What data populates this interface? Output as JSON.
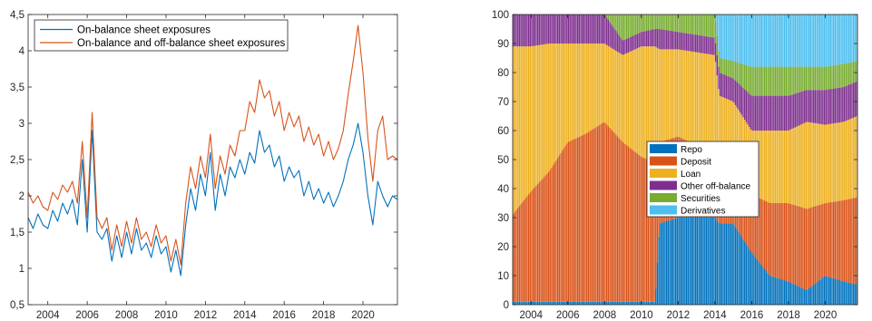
{
  "chart_data": [
    {
      "type": "line",
      "xlim": [
        2003.0,
        2021.75
      ],
      "ylim": [
        0.5,
        4.5
      ],
      "x_ticks": [
        "2004",
        "2006",
        "2008",
        "2010",
        "2012",
        "2014",
        "2016",
        "2018",
        "2020"
      ],
      "y_ticks": [
        "0,5",
        "1",
        "1,5",
        "2",
        "2,5",
        "3",
        "3,5",
        "4",
        "4,5"
      ],
      "grid": false,
      "legend_position": "top-left",
      "series": [
        {
          "name": "On-balance sheet exposures",
          "color": "#0072BD",
          "points": [
            [
              2003.0,
              1.7
            ],
            [
              2003.25,
              1.55
            ],
            [
              2003.5,
              1.75
            ],
            [
              2003.75,
              1.6
            ],
            [
              2004.0,
              1.55
            ],
            [
              2004.25,
              1.8
            ],
            [
              2004.5,
              1.65
            ],
            [
              2004.75,
              1.9
            ],
            [
              2005.0,
              1.75
            ],
            [
              2005.25,
              1.95
            ],
            [
              2005.5,
              1.6
            ],
            [
              2005.75,
              2.5
            ],
            [
              2006.0,
              1.5
            ],
            [
              2006.25,
              2.9
            ],
            [
              2006.5,
              1.5
            ],
            [
              2006.75,
              1.4
            ],
            [
              2007.0,
              1.55
            ],
            [
              2007.25,
              1.1
            ],
            [
              2007.5,
              1.45
            ],
            [
              2007.75,
              1.15
            ],
            [
              2008.0,
              1.5
            ],
            [
              2008.25,
              1.2
            ],
            [
              2008.5,
              1.55
            ],
            [
              2008.75,
              1.25
            ],
            [
              2009.0,
              1.35
            ],
            [
              2009.25,
              1.15
            ],
            [
              2009.5,
              1.45
            ],
            [
              2009.75,
              1.2
            ],
            [
              2010.0,
              1.3
            ],
            [
              2010.25,
              0.95
            ],
            [
              2010.5,
              1.25
            ],
            [
              2010.75,
              0.9
            ],
            [
              2011.0,
              1.6
            ],
            [
              2011.25,
              2.1
            ],
            [
              2011.5,
              1.8
            ],
            [
              2011.75,
              2.3
            ],
            [
              2012.0,
              2.0
            ],
            [
              2012.25,
              2.6
            ],
            [
              2012.5,
              1.8
            ],
            [
              2012.75,
              2.3
            ],
            [
              2013.0,
              2.0
            ],
            [
              2013.25,
              2.4
            ],
            [
              2013.5,
              2.25
            ],
            [
              2013.75,
              2.5
            ],
            [
              2014.0,
              2.3
            ],
            [
              2014.25,
              2.6
            ],
            [
              2014.5,
              2.45
            ],
            [
              2014.75,
              2.9
            ],
            [
              2015.0,
              2.6
            ],
            [
              2015.25,
              2.7
            ],
            [
              2015.5,
              2.4
            ],
            [
              2015.75,
              2.55
            ],
            [
              2016.0,
              2.2
            ],
            [
              2016.25,
              2.4
            ],
            [
              2016.5,
              2.25
            ],
            [
              2016.75,
              2.35
            ],
            [
              2017.0,
              2.0
            ],
            [
              2017.25,
              2.2
            ],
            [
              2017.5,
              1.95
            ],
            [
              2017.75,
              2.1
            ],
            [
              2018.0,
              1.9
            ],
            [
              2018.25,
              2.05
            ],
            [
              2018.5,
              1.85
            ],
            [
              2018.75,
              2.0
            ],
            [
              2019.0,
              2.2
            ],
            [
              2019.25,
              2.5
            ],
            [
              2019.5,
              2.7
            ],
            [
              2019.75,
              3.0
            ],
            [
              2020.0,
              2.6
            ],
            [
              2020.25,
              2.0
            ],
            [
              2020.5,
              1.6
            ],
            [
              2020.75,
              2.2
            ],
            [
              2021.0,
              2.0
            ],
            [
              2021.25,
              1.85
            ],
            [
              2021.5,
              2.0
            ],
            [
              2021.75,
              1.95
            ]
          ]
        },
        {
          "name": "On-balance and off-balance sheet exposures",
          "color": "#D95319",
          "points": [
            [
              2003.0,
              2.05
            ],
            [
              2003.25,
              1.9
            ],
            [
              2003.5,
              2.0
            ],
            [
              2003.75,
              1.85
            ],
            [
              2004.0,
              1.8
            ],
            [
              2004.25,
              2.05
            ],
            [
              2004.5,
              1.95
            ],
            [
              2004.75,
              2.15
            ],
            [
              2005.0,
              2.05
            ],
            [
              2005.25,
              2.2
            ],
            [
              2005.5,
              1.9
            ],
            [
              2005.75,
              2.75
            ],
            [
              2006.0,
              1.7
            ],
            [
              2006.25,
              3.15
            ],
            [
              2006.5,
              1.7
            ],
            [
              2006.75,
              1.55
            ],
            [
              2007.0,
              1.7
            ],
            [
              2007.25,
              1.25
            ],
            [
              2007.5,
              1.6
            ],
            [
              2007.75,
              1.3
            ],
            [
              2008.0,
              1.65
            ],
            [
              2008.25,
              1.35
            ],
            [
              2008.5,
              1.7
            ],
            [
              2008.75,
              1.4
            ],
            [
              2009.0,
              1.5
            ],
            [
              2009.25,
              1.3
            ],
            [
              2009.5,
              1.6
            ],
            [
              2009.75,
              1.35
            ],
            [
              2010.0,
              1.45
            ],
            [
              2010.25,
              1.1
            ],
            [
              2010.5,
              1.4
            ],
            [
              2010.75,
              1.05
            ],
            [
              2011.0,
              1.9
            ],
            [
              2011.25,
              2.4
            ],
            [
              2011.5,
              2.1
            ],
            [
              2011.75,
              2.55
            ],
            [
              2012.0,
              2.25
            ],
            [
              2012.25,
              2.85
            ],
            [
              2012.5,
              2.1
            ],
            [
              2012.75,
              2.55
            ],
            [
              2013.0,
              2.3
            ],
            [
              2013.25,
              2.7
            ],
            [
              2013.5,
              2.55
            ],
            [
              2013.75,
              2.9
            ],
            [
              2014.0,
              2.9
            ],
            [
              2014.25,
              3.3
            ],
            [
              2014.5,
              3.15
            ],
            [
              2014.75,
              3.6
            ],
            [
              2015.0,
              3.35
            ],
            [
              2015.25,
              3.45
            ],
            [
              2015.5,
              3.1
            ],
            [
              2015.75,
              3.3
            ],
            [
              2016.0,
              2.9
            ],
            [
              2016.25,
              3.15
            ],
            [
              2016.5,
              2.95
            ],
            [
              2016.75,
              3.1
            ],
            [
              2017.0,
              2.75
            ],
            [
              2017.25,
              2.95
            ],
            [
              2017.5,
              2.7
            ],
            [
              2017.75,
              2.85
            ],
            [
              2018.0,
              2.55
            ],
            [
              2018.25,
              2.75
            ],
            [
              2018.5,
              2.5
            ],
            [
              2018.75,
              2.65
            ],
            [
              2019.0,
              2.9
            ],
            [
              2019.25,
              3.4
            ],
            [
              2019.5,
              3.85
            ],
            [
              2019.75,
              4.35
            ],
            [
              2020.0,
              3.7
            ],
            [
              2020.25,
              2.8
            ],
            [
              2020.5,
              2.2
            ],
            [
              2020.75,
              2.9
            ],
            [
              2021.0,
              3.1
            ],
            [
              2021.25,
              2.5
            ],
            [
              2021.5,
              2.55
            ],
            [
              2021.75,
              2.5
            ]
          ]
        }
      ]
    },
    {
      "type": "bar",
      "stacked": true,
      "xlim": [
        2003.0,
        2021.75
      ],
      "ylim": [
        0,
        100
      ],
      "x_ticks": [
        "2004",
        "2006",
        "2008",
        "2010",
        "2012",
        "2014",
        "2016",
        "2018",
        "2020"
      ],
      "y_ticks": [
        "0",
        "10",
        "20",
        "30",
        "40",
        "50",
        "60",
        "70",
        "80",
        "90",
        "100"
      ],
      "grid": false,
      "legend_position": "center",
      "anchor_years": [
        2003.0,
        2004.0,
        2005.0,
        2006.0,
        2007.0,
        2008.0,
        2009.0,
        2010.0,
        2010.75,
        2011.0,
        2012.0,
        2013.0,
        2014.0,
        2014.25,
        2015.0,
        2016.0,
        2017.0,
        2018.0,
        2019.0,
        2020.0,
        2021.0,
        2021.75
      ],
      "series": [
        {
          "name": "Repo",
          "color": "#0072BD",
          "values": [
            1,
            1,
            1,
            1,
            1,
            1,
            1,
            1,
            1,
            28,
            30,
            30,
            30,
            28,
            28,
            18,
            10,
            8,
            5,
            10,
            8,
            7
          ]
        },
        {
          "name": "Deposit",
          "color": "#D95319",
          "values": [
            30,
            38,
            45,
            55,
            58,
            62,
            55,
            50,
            48,
            28,
            28,
            25,
            22,
            24,
            22,
            20,
            25,
            27,
            28,
            25,
            28,
            30
          ]
        },
        {
          "name": "Loan",
          "color": "#EDB120",
          "values": [
            58,
            50,
            44,
            34,
            31,
            27,
            30,
            38,
            40,
            32,
            30,
            32,
            34,
            20,
            20,
            22,
            25,
            25,
            30,
            27,
            27,
            28
          ]
        },
        {
          "name": "Other off-balance",
          "color": "#7E2F8E",
          "values": [
            11,
            11,
            10,
            10,
            10,
            10,
            5,
            5,
            6,
            7,
            6,
            6,
            6,
            8,
            8,
            12,
            12,
            12,
            11,
            12,
            12,
            12
          ]
        },
        {
          "name": "Securities",
          "color": "#77AC30",
          "values": [
            0,
            0,
            0,
            0,
            0,
            0,
            9,
            6,
            5,
            5,
            6,
            7,
            8,
            5,
            6,
            10,
            10,
            10,
            8,
            8,
            8,
            7
          ]
        },
        {
          "name": "Derivatives",
          "color": "#4DBEEE",
          "values": [
            0,
            0,
            0,
            0,
            0,
            0,
            0,
            0,
            0,
            0,
            0,
            0,
            0,
            15,
            16,
            18,
            18,
            18,
            18,
            18,
            17,
            16
          ]
        }
      ]
    }
  ]
}
